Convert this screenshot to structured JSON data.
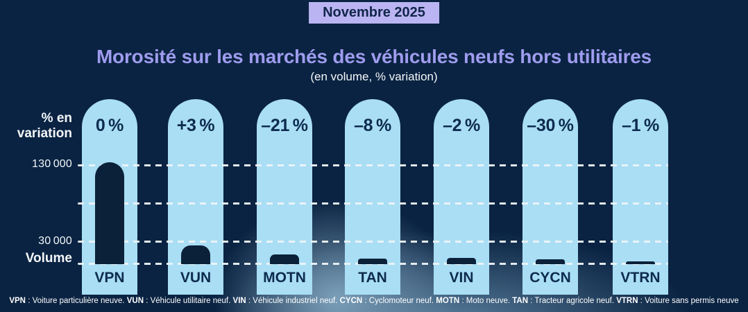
{
  "header": {
    "badge": "Novembre 2025"
  },
  "axis": {
    "pct_label": "% en\nvariation",
    "tick_top": "130 000",
    "tick_mid": "30 000",
    "volume_label": "Volume"
  },
  "chart_data": {
    "type": "bar",
    "title": "Morosité sur les marchés des véhicules neufs hors utilitaires",
    "subtitle": "(en volume, % variation)",
    "period": "Novembre 2025",
    "ylabel": "Volume",
    "y_ticks": [
      130000,
      30000
    ],
    "grid": true,
    "columns": [
      {
        "code": "VPN",
        "pct_label": "0 %",
        "pct_value": 0,
        "volume_estimate": 134000
      },
      {
        "code": "VUN",
        "pct_label": "+3 %",
        "pct_value": 3,
        "volume_estimate": 25000
      },
      {
        "code": "MOTN",
        "pct_label": "–21 %",
        "pct_value": -21,
        "volume_estimate": 13000
      },
      {
        "code": "TAN",
        "pct_label": "–8 %",
        "pct_value": -8,
        "volume_estimate": 7000
      },
      {
        "code": "VIN",
        "pct_label": "–2 %",
        "pct_value": -2,
        "volume_estimate": 8000
      },
      {
        "code": "CYCN",
        "pct_label": "–30 %",
        "pct_value": -30,
        "volume_estimate": 6000
      },
      {
        "code": "VTRN",
        "pct_label": "–1 %",
        "pct_value": -1,
        "volume_estimate": 4000
      }
    ]
  },
  "footnote": {
    "items": [
      {
        "abbr": "VPN",
        "def": "Voiture particulière neuve."
      },
      {
        "abbr": "VUN",
        "def": "Véhicule utilitaire neuf."
      },
      {
        "abbr": "VIN",
        "def": "Véhicule industriel neuf."
      },
      {
        "abbr": "CYCN",
        "def": "Cyclomoteur neuf."
      },
      {
        "abbr": "MOTN",
        "def": "Moto neuve."
      },
      {
        "abbr": "TAN",
        "def": "Tracteur agricole neuf."
      },
      {
        "abbr": "VTRN",
        "def": "Voiture sans permis neuve"
      }
    ]
  },
  "colors": {
    "background": "#0a2342",
    "glow": "#6a91af",
    "pill": "#a9def5",
    "bar": "#0a2139",
    "title": "#9f9cee",
    "badge_background": "#bab5f2",
    "dark_text": "#0d2b4e",
    "light_text": "#ffffff"
  }
}
